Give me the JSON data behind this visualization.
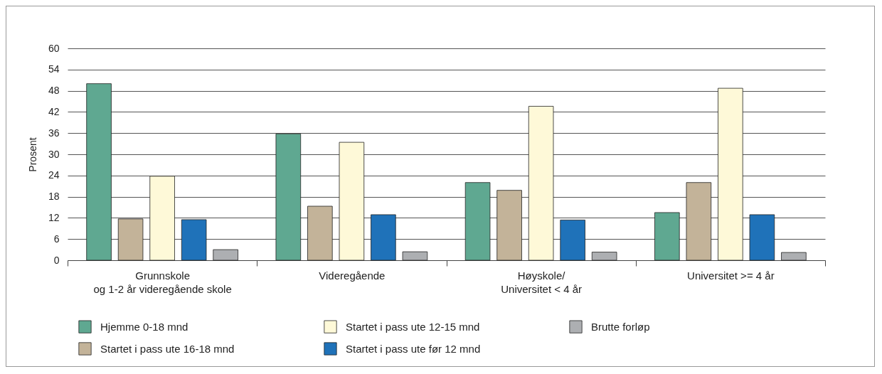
{
  "chart_data": {
    "type": "bar",
    "ylabel": "Prosent",
    "categories": [
      "Grunnskole\nog 1-2 år videregående skole",
      "Videregående",
      "Høyskole/\nUniversitet < 4 år",
      "Universitet >= 4 år"
    ],
    "series": [
      {
        "name": "Hjemme    0-18 mnd",
        "color": "#5fa891",
        "values": [
          50,
          35.8,
          22,
          13.5
        ]
      },
      {
        "name": "Startet i  pass ute 16-18 mnd",
        "color": "#c3b399",
        "values": [
          11.7,
          15.3,
          19.8,
          22
        ]
      },
      {
        "name": "Startet i  pass ute 12-15 mnd",
        "color": "#fef9d8",
        "values": [
          23.8,
          33.4,
          43.6,
          48.7
        ]
      },
      {
        "name": "Startet  i  pass ute før 12 mnd",
        "color": "#1f72b9",
        "values": [
          11.5,
          12.9,
          11.4,
          12.9
        ]
      },
      {
        "name": "Brutte forløp",
        "color": "#adafb2",
        "values": [
          3,
          2.4,
          2.3,
          2.2
        ]
      }
    ],
    "ylim": [
      0,
      60
    ],
    "yticks": [
      0,
      6,
      12,
      18,
      24,
      30,
      36,
      42,
      48,
      54,
      60
    ],
    "grid": "y",
    "legend": "bottom"
  }
}
